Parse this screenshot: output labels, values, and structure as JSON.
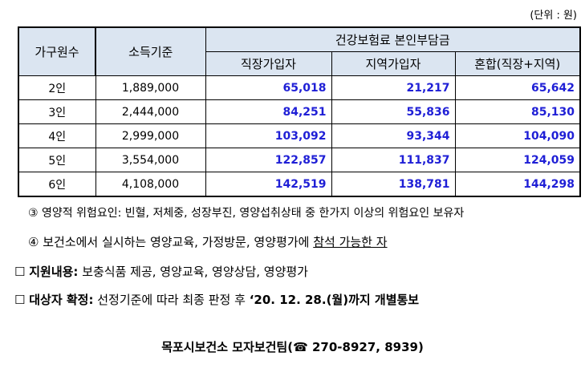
{
  "unit": "(단위 : 원)",
  "table": {
    "header": {
      "household": "가구원수",
      "income": "소득기준",
      "premium": "건강보험료 본인부담금",
      "sub": [
        "직장가입자",
        "지역가입자",
        "혼합(직장+지역)"
      ]
    },
    "rows": [
      [
        "2인",
        "1,889,000",
        "65,018",
        "21,217",
        "65,642"
      ],
      [
        "3인",
        "2,444,000",
        "84,251",
        "55,836",
        "85,130"
      ],
      [
        "4인",
        "2,999,000",
        "103,092",
        "93,344",
        "104,090"
      ],
      [
        "5인",
        "3,554,000",
        "122,857",
        "111,837",
        "124,059"
      ],
      [
        "6인",
        "4,108,000",
        "142,519",
        "138,781",
        "144,298"
      ]
    ]
  },
  "notes": {
    "note3": "③ 영양적 위험요인: 빈혈, 저체중, 성장부진, 영양섭취상태 중 한가지 이상의 위험요인 보유자",
    "note4": {
      "text": "④ 보건소에서 실시하는 영양교육, 가정방문, 영양평가에",
      "underlined": "참석 가능한 자"
    }
  },
  "support": {
    "label": "지원내용:",
    "text": "보충식품 제공, 영양교육, 영양상담, 영양평가"
  },
  "confirm": {
    "label": "대상자 확정:",
    "text": "선정기준에 따라 최종 판정 후",
    "bold": "‘20. 12. 28.(월)까지 개별통보"
  },
  "footer": "목포시보건소 모자보건팀(☎ 270-8927, 8939)"
}
